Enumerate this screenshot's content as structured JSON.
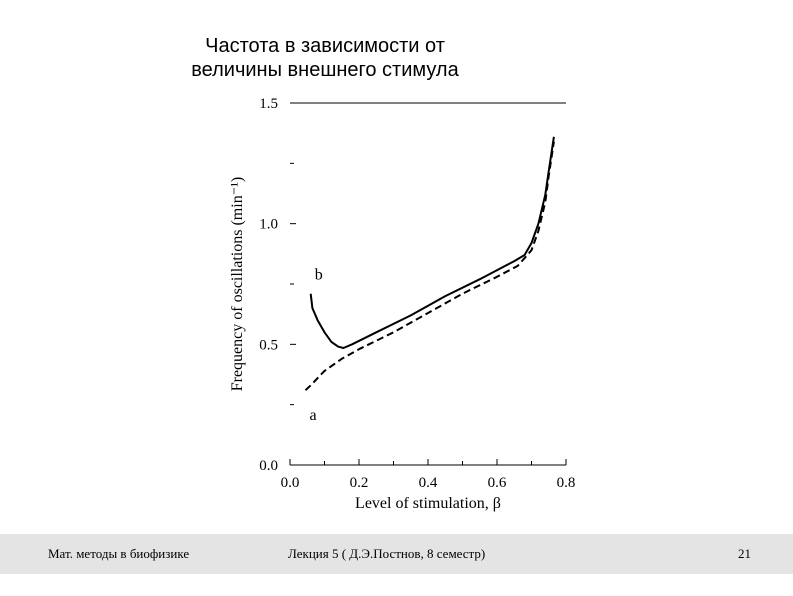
{
  "slide": {
    "title_line1": "Частота в зависимости от",
    "title_line2": "величины внешнего стимула"
  },
  "chart_data": {
    "type": "line",
    "xlabel": "Level of stimulation, β",
    "ylabel": "Frequency of oscillations (min⁻¹)",
    "xlim": [
      0,
      0.8
    ],
    "ylim": [
      0,
      1.5
    ],
    "x_ticks": [
      {
        "value": 0.0,
        "label": "0.0"
      },
      {
        "value": 0.2,
        "label": "0.2"
      },
      {
        "value": 0.4,
        "label": "0.4"
      },
      {
        "value": 0.6,
        "label": "0.6"
      },
      {
        "value": 0.8,
        "label": "0.8"
      }
    ],
    "y_ticks": [
      {
        "value": 0.0,
        "label": "0.0"
      },
      {
        "value": 0.5,
        "label": "0.5"
      },
      {
        "value": 1.0,
        "label": "1.0"
      },
      {
        "value": 1.5,
        "label": "1.5"
      }
    ],
    "series": [
      {
        "name": "b",
        "style": "solid",
        "x": [
          0.06,
          0.065,
          0.08,
          0.1,
          0.12,
          0.14,
          0.155,
          0.18,
          0.25,
          0.35,
          0.45,
          0.55,
          0.65,
          0.68,
          0.7,
          0.72,
          0.74,
          0.75,
          0.765
        ],
        "y": [
          0.71,
          0.65,
          0.6,
          0.55,
          0.51,
          0.49,
          0.485,
          0.5,
          0.55,
          0.62,
          0.7,
          0.77,
          0.845,
          0.87,
          0.92,
          1.0,
          1.12,
          1.22,
          1.36
        ]
      },
      {
        "name": "a",
        "style": "dashed",
        "x": [
          0.045,
          0.06,
          0.1,
          0.15,
          0.2,
          0.3,
          0.4,
          0.5,
          0.6,
          0.66,
          0.7,
          0.72,
          0.74,
          0.75,
          0.765
        ],
        "y": [
          0.31,
          0.33,
          0.39,
          0.44,
          0.48,
          0.55,
          0.63,
          0.71,
          0.78,
          0.825,
          0.89,
          0.97,
          1.09,
          1.2,
          1.34
        ]
      }
    ],
    "line_color": "#000000"
  },
  "footer": {
    "left": "Мат. методы в биофизике",
    "center": "Лекция 5 ( Д.Э.Постнов, 8 семестр)",
    "page": "21"
  }
}
